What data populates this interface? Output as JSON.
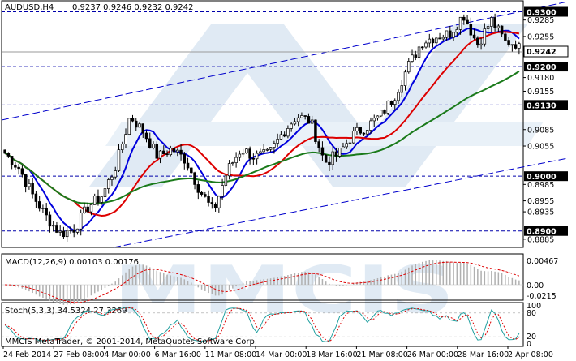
{
  "header": {
    "symbol_label": "AUDUSD,H4",
    "ohlc": "0.9237 0.9246 0.9232 0.9242"
  },
  "macd_panel": {
    "label": "MACD(12,26,9) 0.00103 0.00176",
    "ticks": [
      "0.00467",
      "0.00",
      "-0.0215"
    ]
  },
  "stoch_panel": {
    "label": "Stoch(5,3,3) 34.5324 27.3269",
    "ticks": [
      "100",
      "80",
      "20",
      "0"
    ]
  },
  "footer": {
    "copyright": "MMCIS MetaTrader, © 2001-2014, MetaQuotes Software Corp."
  },
  "watermark": {
    "text": "MMCIS"
  },
  "price_axis": {
    "ticks": [
      "0.9285",
      "0.9255",
      "0.9180",
      "0.9155",
      "0.9085",
      "0.9055",
      "0.8985",
      "0.8955",
      "0.8935",
      "0.8885"
    ],
    "levels": [
      "0.9300",
      "0.9200",
      "0.9130",
      "0.9000",
      "0.8900"
    ],
    "current_price": "0.9242"
  },
  "time_axis": {
    "labels": [
      "24 Feb 2014",
      "27 Feb 08:00",
      "4 Mar 00:00",
      "6 Mar 16:00",
      "11 Mar 08:00",
      "14 Mar 00:00",
      "18 Mar 16:00",
      "21 Mar 08:00",
      "26 Mar 00:00",
      "28 Mar 16:00",
      "2 Apr 08:00"
    ]
  },
  "colors": {
    "candle": "#000000",
    "ma_fast": "#0000dd",
    "ma_mid": "#dd0000",
    "ma_slow": "#1a7a1a",
    "channel": "#0000cc",
    "level_line": "#0000aa",
    "level_label_bg": "#000000",
    "macd_hist": "#b0b0b0",
    "macd_signal": "#dd0000",
    "stoch_main": "#20a0a0",
    "stoch_signal": "#dd0000"
  },
  "chart_data": {
    "type": "candlestick",
    "title": "AUDUSD,H4",
    "ylim": [
      0.887,
      0.932
    ],
    "x_start": "24 Feb 2014",
    "close_path": [
      0.9042,
      0.9015,
      0.8965,
      0.8925,
      0.8895,
      0.8905,
      0.8945,
      0.8965,
      0.902,
      0.911,
      0.908,
      0.9035,
      0.905,
      0.903,
      0.8975,
      0.8935,
      0.901,
      0.905,
      0.9035,
      0.904,
      0.908,
      0.911,
      0.91,
      0.9025,
      0.904,
      0.9075,
      0.909,
      0.911,
      0.9145,
      0.92,
      0.9245,
      0.9255,
      0.926,
      0.9295,
      0.924,
      0.9285,
      0.9245,
      0.9242
    ]
  }
}
